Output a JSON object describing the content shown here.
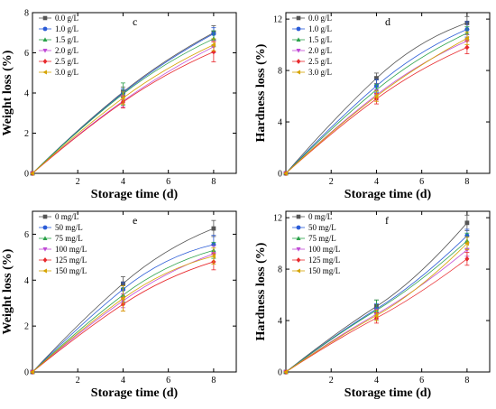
{
  "chart_data": [
    {
      "type": "line",
      "panel": "c",
      "ylabel": "Weight loss (%)",
      "xlabel": "Storage time (d)",
      "xlim": [
        0,
        9
      ],
      "ylim": [
        0,
        8
      ],
      "xticks": [
        2,
        4,
        6,
        8
      ],
      "yticks": [
        0,
        2,
        4,
        6,
        8
      ],
      "legend": "top-left",
      "x": [
        0,
        4,
        8
      ],
      "series": [
        {
          "name": "0.0 g/L",
          "marker": "square",
          "color": "#555555",
          "values": [
            0,
            4.05,
            7.0
          ],
          "errors": [
            0,
            0.25,
            0.35
          ]
        },
        {
          "name": "1.0 g/L",
          "marker": "circle",
          "color": "#2a5bd7",
          "values": [
            0,
            4.0,
            6.95
          ],
          "errors": [
            0,
            0.2,
            0.3
          ]
        },
        {
          "name": "1.5 g/L",
          "marker": "triangle-up",
          "color": "#2aa14a",
          "values": [
            0,
            3.95,
            6.7
          ],
          "errors": [
            0,
            0.55,
            0.4
          ]
        },
        {
          "name": "2.0 g/L",
          "marker": "triangle-down",
          "color": "#c04ad6",
          "values": [
            0,
            3.6,
            6.3
          ],
          "errors": [
            0,
            0.3,
            0.3
          ]
        },
        {
          "name": "2.5 g/L",
          "marker": "diamond",
          "color": "#e8292d",
          "values": [
            0,
            3.55,
            6.05
          ],
          "errors": [
            0,
            0.3,
            0.5
          ]
        },
        {
          "name": "3.0 g/L",
          "marker": "triangle-left",
          "color": "#d6a400",
          "values": [
            0,
            3.75,
            6.4
          ],
          "errors": [
            0,
            0.3,
            0.3
          ]
        }
      ]
    },
    {
      "type": "line",
      "panel": "d",
      "ylabel": "Hardness loss (%)",
      "xlabel": "Storage time (d)",
      "xlim": [
        0,
        9
      ],
      "ylim": [
        0,
        12.5
      ],
      "xticks": [
        2,
        4,
        6,
        8
      ],
      "yticks": [
        0,
        4,
        8,
        12
      ],
      "legend": "top-left",
      "x": [
        0,
        4,
        8
      ],
      "series": [
        {
          "name": "0.0 g/L",
          "marker": "square",
          "color": "#555555",
          "values": [
            0,
            7.4,
            11.7
          ],
          "errors": [
            0,
            0.4,
            0.5
          ]
        },
        {
          "name": "1.0 g/L",
          "marker": "circle",
          "color": "#2a5bd7",
          "values": [
            0,
            6.8,
            11.2
          ],
          "errors": [
            0,
            0.5,
            0.6
          ]
        },
        {
          "name": "1.5 g/L",
          "marker": "triangle-up",
          "color": "#2aa14a",
          "values": [
            0,
            6.5,
            10.9
          ],
          "errors": [
            0,
            0.4,
            0.5
          ]
        },
        {
          "name": "2.0 g/L",
          "marker": "triangle-down",
          "color": "#c04ad6",
          "values": [
            0,
            6.1,
            10.3
          ],
          "errors": [
            0,
            0.4,
            0.5
          ]
        },
        {
          "name": "2.5 g/L",
          "marker": "diamond",
          "color": "#e8292d",
          "values": [
            0,
            5.8,
            9.8
          ],
          "errors": [
            0,
            0.4,
            0.5
          ]
        },
        {
          "name": "3.0 g/L",
          "marker": "triangle-left",
          "color": "#d6a400",
          "values": [
            0,
            6.0,
            10.5
          ],
          "errors": [
            0,
            0.4,
            0.5
          ]
        }
      ]
    },
    {
      "type": "line",
      "panel": "e",
      "ylabel": "Weight loss (%)",
      "xlabel": "Storage time (d)",
      "xlim": [
        0,
        9
      ],
      "ylim": [
        0,
        7
      ],
      "xticks": [
        2,
        4,
        6,
        8
      ],
      "yticks": [
        0,
        2,
        4,
        6
      ],
      "legend": "top-left",
      "x": [
        0,
        4,
        8
      ],
      "series": [
        {
          "name": "0 mg/L",
          "marker": "square",
          "color": "#555555",
          "values": [
            0,
            3.85,
            6.25
          ],
          "errors": [
            0,
            0.3,
            0.35
          ]
        },
        {
          "name": "50 mg/L",
          "marker": "circle",
          "color": "#2a5bd7",
          "values": [
            0,
            3.6,
            5.55
          ],
          "errors": [
            0,
            0.3,
            0.4
          ]
        },
        {
          "name": "75 mg/L",
          "marker": "triangle-up",
          "color": "#2aa14a",
          "values": [
            0,
            3.35,
            5.3
          ],
          "errors": [
            0,
            0.3,
            0.35
          ]
        },
        {
          "name": "100 mg/L",
          "marker": "triangle-down",
          "color": "#c04ad6",
          "values": [
            0,
            3.1,
            5.15
          ],
          "errors": [
            0,
            0.3,
            0.35
          ]
        },
        {
          "name": "125 mg/L",
          "marker": "diamond",
          "color": "#e8292d",
          "values": [
            0,
            2.95,
            4.8
          ],
          "errors": [
            0,
            0.3,
            0.35
          ]
        },
        {
          "name": "150 mg/L",
          "marker": "triangle-left",
          "color": "#d6a400",
          "values": [
            0,
            3.2,
            5.05
          ],
          "errors": [
            0,
            0.55,
            0.35
          ]
        }
      ]
    },
    {
      "type": "line",
      "panel": "f",
      "ylabel": "Hardness loss (%)",
      "xlabel": "Storage time (d)",
      "xlim": [
        0,
        9
      ],
      "ylim": [
        0,
        12.5
      ],
      "xticks": [
        2,
        4,
        6,
        8
      ],
      "yticks": [
        0,
        4,
        8,
        12
      ],
      "legend": "top-left",
      "x": [
        0,
        4,
        8
      ],
      "series": [
        {
          "name": "0 mg/L",
          "marker": "square",
          "color": "#555555",
          "values": [
            0,
            5.1,
            11.6
          ],
          "errors": [
            0,
            0.5,
            0.6
          ]
        },
        {
          "name": "50 mg/L",
          "marker": "circle",
          "color": "#2a5bd7",
          "values": [
            0,
            4.9,
            10.6
          ],
          "errors": [
            0,
            0.4,
            0.5
          ]
        },
        {
          "name": "75 mg/L",
          "marker": "triangle-up",
          "color": "#2aa14a",
          "values": [
            0,
            4.8,
            10.2
          ],
          "errors": [
            0,
            0.8,
            0.6
          ]
        },
        {
          "name": "100 mg/L",
          "marker": "triangle-down",
          "color": "#c04ad6",
          "values": [
            0,
            4.5,
            9.5
          ],
          "errors": [
            0,
            0.4,
            0.5
          ]
        },
        {
          "name": "125 mg/L",
          "marker": "diamond",
          "color": "#e8292d",
          "values": [
            0,
            4.2,
            8.8
          ],
          "errors": [
            0,
            0.4,
            0.5
          ]
        },
        {
          "name": "150 mg/L",
          "marker": "triangle-left",
          "color": "#d6a400",
          "values": [
            0,
            4.4,
            10.0
          ],
          "errors": [
            0,
            0.4,
            0.5
          ]
        }
      ]
    }
  ]
}
